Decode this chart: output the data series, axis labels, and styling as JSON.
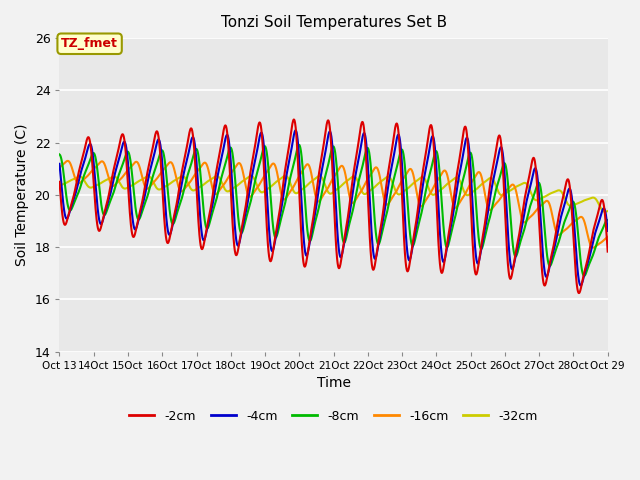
{
  "title": "Tonzi Soil Temperatures Set B",
  "xlabel": "Time",
  "ylabel": "Soil Temperature (C)",
  "ylim": [
    14,
    26
  ],
  "annotation": "TZ_fmet",
  "annotation_color": "#cc0000",
  "annotation_bg": "#ffffcc",
  "annotation_border": "#999900",
  "background_color": "#e8e8e8",
  "series": [
    {
      "label": "-2cm",
      "color": "#dd0000",
      "lw": 1.5
    },
    {
      "label": "-4cm",
      "color": "#0000cc",
      "lw": 1.5
    },
    {
      "label": "-8cm",
      "color": "#00bb00",
      "lw": 1.5
    },
    {
      "label": "-16cm",
      "color": "#ff8800",
      "lw": 1.5
    },
    {
      "label": "-32cm",
      "color": "#cccc00",
      "lw": 1.5
    }
  ],
  "yticks": [
    14,
    16,
    18,
    20,
    22,
    24,
    26
  ]
}
